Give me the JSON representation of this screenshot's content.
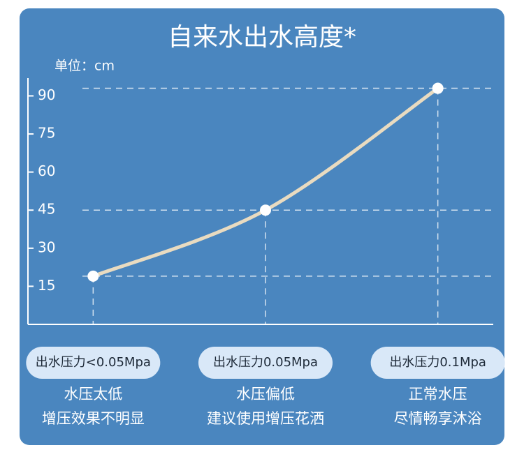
{
  "chart_data": {
    "type": "line",
    "title": "自来水出水高度*",
    "y_unit_label": "单位：cm",
    "categories": [
      "出水压力<0.05Mpa",
      "出水压力0.05Mpa",
      "出水压力0.1Mpa"
    ],
    "captions": [
      [
        "水压太低",
        "增压效果不明显"
      ],
      [
        "水压偏低",
        "建议使用增压花洒"
      ],
      [
        "正常水压",
        "尽情畅享沐浴"
      ]
    ],
    "values": [
      19,
      45,
      93
    ],
    "color": "#e9dbc0",
    "ylim": [
      0,
      97
    ],
    "yticks": [
      15,
      30,
      45,
      60,
      75,
      90
    ]
  }
}
